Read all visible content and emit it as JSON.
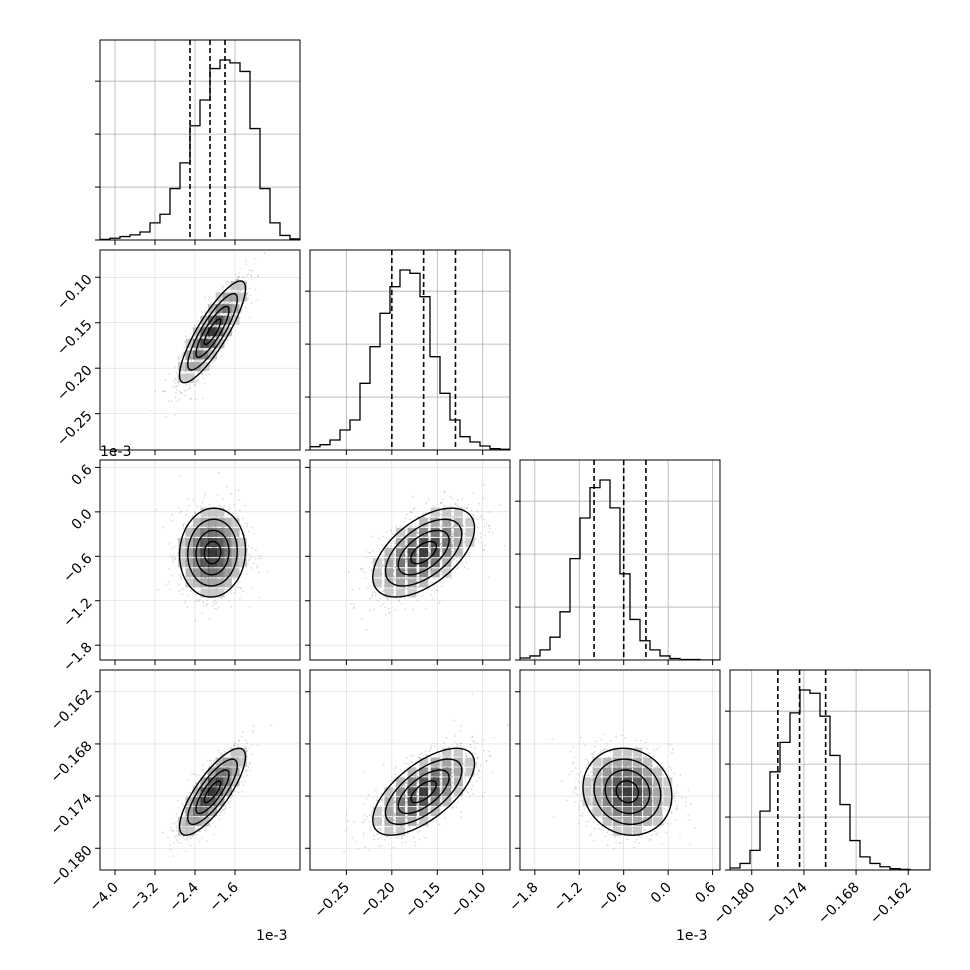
{
  "chart_data": {
    "type": "corner",
    "grid": true,
    "colors": {
      "line": "#000000",
      "grid": "#b0b0b0",
      "scatter": "#8a8a8a"
    },
    "variables": [
      {
        "range": [
          -4.3,
          -0.3
        ],
        "ticks": [
          "-4.0",
          "-3.2",
          "-2.4",
          "-1.6"
        ],
        "tick_values": [
          -4.0,
          -3.2,
          -2.4,
          -1.6
        ],
        "offset": "1e-3",
        "quantiles": [
          -2.5,
          -2.1,
          -1.8
        ],
        "histogram": {
          "start": -4.3,
          "width": 0.2,
          "counts": [
            1,
            3,
            6,
            9,
            14,
            30,
            45,
            90,
            135,
            200,
            245,
            300,
            315,
            310,
            295,
            195,
            90,
            30,
            8,
            2
          ]
        }
      },
      {
        "range": [
          -0.29,
          -0.07
        ],
        "ticks": [
          "-0.25",
          "-0.20",
          "-0.15",
          "-0.10"
        ],
        "tick_values": [
          -0.25,
          -0.2,
          -0.15,
          -0.1
        ],
        "offset": "",
        "quantiles": [
          -0.2,
          -0.165,
          -0.13
        ],
        "histogram": {
          "start": -0.29,
          "width": 0.011,
          "counts": [
            5,
            8,
            15,
            30,
            45,
            100,
            155,
            205,
            245,
            270,
            265,
            230,
            140,
            85,
            45,
            20,
            12,
            6,
            2,
            1
          ]
        }
      },
      {
        "range": [
          -2.0,
          0.7
        ],
        "ticks": [
          "-1.8",
          "-1.2",
          "-0.6",
          "0.0",
          "0.6"
        ],
        "tick_values": [
          -1.8,
          -1.2,
          -0.6,
          0.0,
          0.6
        ],
        "offset": "1e-3",
        "quantiles": [
          -1.0,
          -0.6,
          -0.3
        ],
        "histogram": {
          "start": -2.0,
          "width": 0.135,
          "counts": [
            4,
            8,
            20,
            45,
            95,
            200,
            280,
            340,
            355,
            300,
            170,
            80,
            38,
            20,
            8,
            3,
            1,
            1,
            0,
            0
          ]
        }
      },
      {
        "range": [
          -0.1825,
          -0.1595
        ],
        "ticks": [
          "-0.180",
          "-0.174",
          "-0.168",
          "-0.162"
        ],
        "tick_values": [
          -0.18,
          -0.174,
          -0.168,
          -0.162
        ],
        "offset": "",
        "quantiles": [
          -0.177,
          -0.1745,
          -0.1715
        ],
        "histogram": {
          "start": -0.1825,
          "width": 0.00115,
          "counts": [
            3,
            10,
            30,
            90,
            150,
            195,
            240,
            275,
            270,
            235,
            175,
            100,
            45,
            20,
            10,
            5,
            2,
            1,
            0,
            0
          ]
        }
      }
    ],
    "pairs": [
      {
        "x": 0,
        "y": 1,
        "center": [
          -2.05,
          -0.16
        ],
        "sd": [
          0.33,
          0.028
        ],
        "rho": 0.85
      },
      {
        "x": 0,
        "y": 2,
        "center": [
          -2.05,
          -0.55
        ],
        "sd": [
          0.33,
          0.3
        ],
        "rho": 0.05
      },
      {
        "x": 1,
        "y": 2,
        "center": [
          -0.165,
          -0.55
        ],
        "sd": [
          0.028,
          0.3
        ],
        "rho": 0.55
      },
      {
        "x": 0,
        "y": 3,
        "center": [
          -2.05,
          -0.1735
        ],
        "sd": [
          0.33,
          0.0025
        ],
        "rho": 0.8
      },
      {
        "x": 1,
        "y": 3,
        "center": [
          -0.165,
          -0.1735
        ],
        "sd": [
          0.028,
          0.0025
        ],
        "rho": 0.65
      },
      {
        "x": 2,
        "y": 3,
        "center": [
          -0.55,
          -0.1735
        ],
        "sd": [
          0.3,
          0.0025
        ],
        "rho": -0.1
      }
    ]
  }
}
